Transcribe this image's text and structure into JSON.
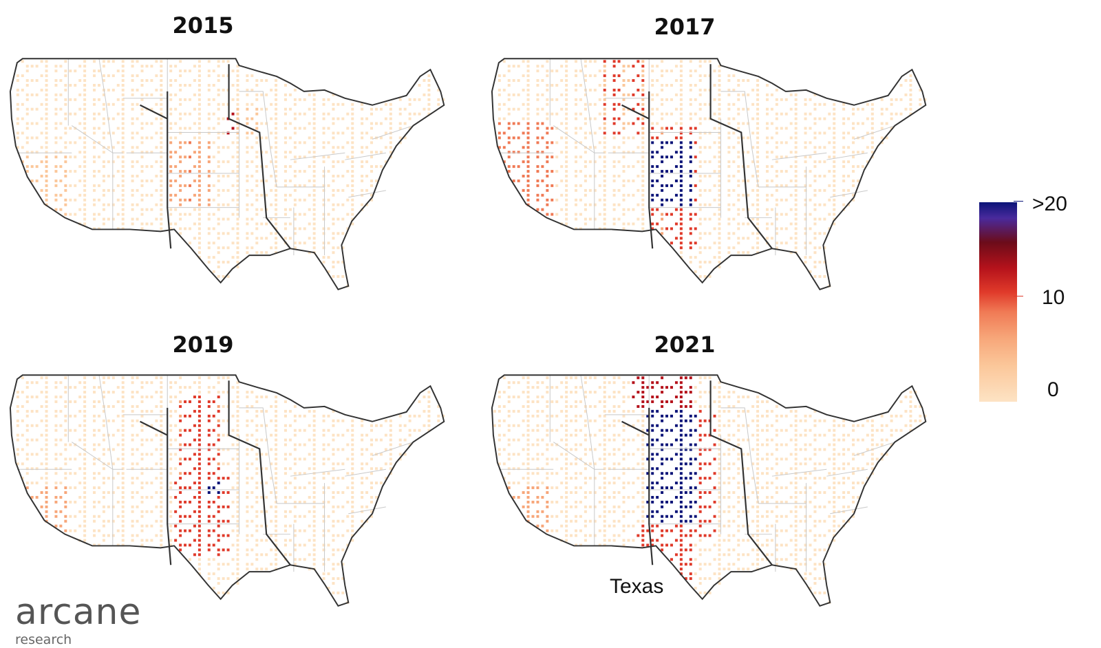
{
  "panels": [
    {
      "year": "2015",
      "profile": "p2015"
    },
    {
      "year": "2017",
      "profile": "p2017"
    },
    {
      "year": "2019",
      "profile": "p2019"
    },
    {
      "year": "2021",
      "profile": "p2021"
    }
  ],
  "legend": {
    "labels": [
      ">20",
      "10",
      "0"
    ],
    "colors": [
      "#0b1478",
      "#6b0c1a",
      "#b5121b",
      "#e03a2a",
      "#f07a55",
      "#f7a679",
      "#fbc79a",
      "#fde3c4"
    ]
  },
  "annotation": "Texas",
  "logo": {
    "name": "arcane",
    "sub": "research"
  }
}
